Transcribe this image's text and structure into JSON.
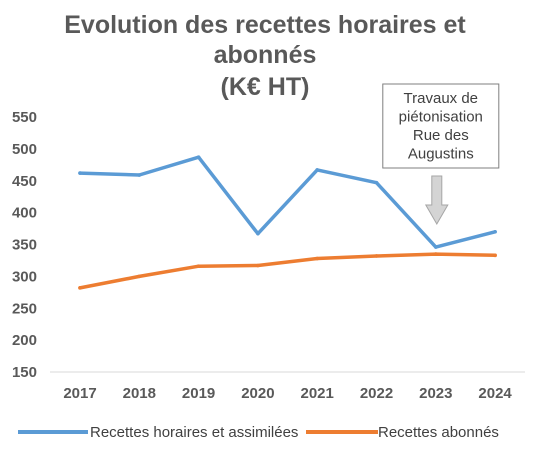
{
  "chart_data": {
    "type": "line",
    "title_lines": [
      "Evolution des recettes horaires et",
      "abonnés",
      "(K€ HT)"
    ],
    "categories": [
      "2017",
      "2018",
      "2019",
      "2020",
      "2021",
      "2022",
      "2023",
      "2024"
    ],
    "series": [
      {
        "name": "Recettes horaires et assimilées",
        "color": "#5b9bd5",
        "values": [
          462,
          459,
          487,
          367,
          467,
          447,
          346,
          370
        ]
      },
      {
        "name": "Recettes abonnés",
        "color": "#ed7d31",
        "values": [
          282,
          300,
          316,
          317,
          328,
          332,
          335,
          333
        ]
      }
    ],
    "ylim": [
      150,
      550
    ],
    "yticks": [
      150,
      200,
      250,
      300,
      350,
      400,
      450,
      500,
      550
    ],
    "grid": false,
    "legend_position": "bottom",
    "annotation": {
      "lines": [
        "Travaux de",
        "piétonisation",
        "Rue des",
        "Augustins"
      ],
      "category": "2023",
      "arrow": "down-arrow-icon"
    }
  }
}
